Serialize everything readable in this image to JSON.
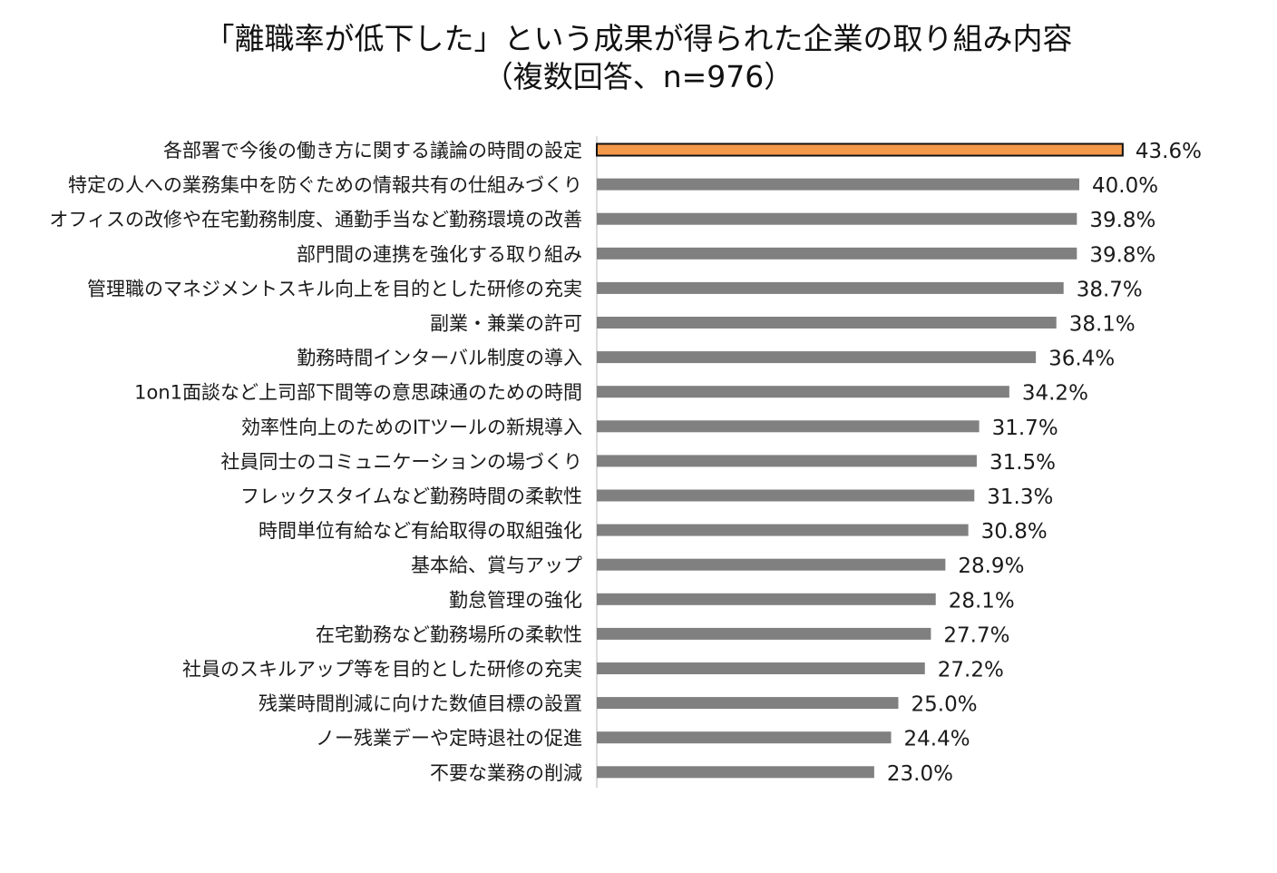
{
  "chart_data": {
    "type": "bar",
    "orientation": "horizontal",
    "title": "「離職率が低下した」という成果が得られた企業の取り組み内容",
    "subtitle": "（複数回答、n=976）",
    "categories": [
      "各部署で今後の働き方に関する議論の時間の設定",
      "特定の人への業務集中を防ぐための情報共有の仕組みづくり",
      "オフィスの改修や在宅勤務制度、通勤手当など勤務環境の改善",
      "部門間の連携を強化する取り組み",
      "管理職のマネジメントスキル向上を目的とした研修の充実",
      "副業・兼業の許可",
      "勤務時間インターバル制度の導入",
      "1on1面談など上司部下間等の意思疎通のための時間",
      "効率性向上のためのITツールの新規導入",
      "社員同士のコミュニケーションの場づくり",
      "フレックスタイムなど勤務時間の柔軟性",
      "時間単位有給など有給取得の取組強化",
      "基本給、賞与アップ",
      "勤怠管理の強化",
      "在宅勤務など勤務場所の柔軟性",
      "社員のスキルアップ等を目的とした研修の充実",
      "残業時間削減に向けた数値目標の設置",
      "ノー残業デーや定時退社の促進",
      "不要な業務の削減"
    ],
    "values": [
      43.6,
      40.0,
      39.8,
      39.8,
      38.7,
      38.1,
      36.4,
      34.2,
      31.7,
      31.5,
      31.3,
      30.8,
      28.9,
      28.1,
      27.7,
      27.2,
      25.0,
      24.4,
      23.0
    ],
    "value_labels": [
      "43.6%",
      "40.0%",
      "39.8%",
      "39.8%",
      "38.7%",
      "38.1%",
      "36.4%",
      "34.2%",
      "31.7%",
      "31.5%",
      "31.3%",
      "30.8%",
      "28.9%",
      "28.1%",
      "27.7%",
      "27.2%",
      "25.0%",
      "24.4%",
      "23.0%"
    ],
    "unit": "%",
    "xlim": [
      0,
      50
    ],
    "grid": false,
    "legend": "none",
    "colors": {
      "highlight": "#f4994a",
      "highlight_border": "#111111",
      "bar": "#808080",
      "axis": "#cfcfcf"
    },
    "highlight_index": 0
  }
}
